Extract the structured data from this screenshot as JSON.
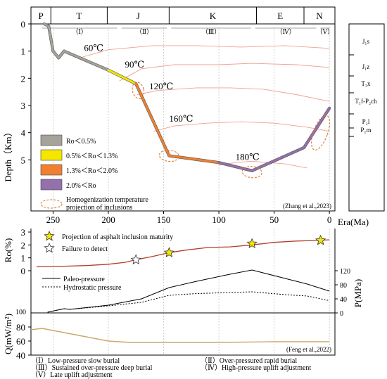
{
  "chart_data": [
    {
      "panel": "burial-history",
      "type": "line",
      "xlabel": "Era(Ma)",
      "ylabel": "Depth（Km）",
      "xlim": [
        270,
        -5
      ],
      "ylim": [
        0,
        6
      ],
      "x_ticks": [
        250,
        200,
        150,
        100,
        50,
        0
      ],
      "y_ticks": [
        0,
        1,
        2,
        3,
        4,
        5
      ],
      "periods": [
        {
          "label": "P",
          "from": 270,
          "to": 252
        },
        {
          "label": "T",
          "from": 252,
          "to": 201
        },
        {
          "label": "J",
          "from": 201,
          "to": 145
        },
        {
          "label": "K",
          "from": 145,
          "to": 66
        },
        {
          "label": "E",
          "from": 66,
          "to": 23
        },
        {
          "label": "N",
          "from": 23,
          "to": -5
        }
      ],
      "stages": [
        {
          "label": "（Ⅰ）",
          "from": 262,
          "to": 190
        },
        {
          "label": "（Ⅱ）",
          "from": 190,
          "to": 145
        },
        {
          "label": "（Ⅲ）",
          "from": 145,
          "to": 69
        },
        {
          "label": "（Ⅳ）",
          "from": 69,
          "to": 10
        },
        {
          "label": "（Ⅴ）",
          "from": 10,
          "to": -2
        }
      ],
      "burial_curve": [
        {
          "x": 258,
          "y": 0.0,
          "ro": "lt05"
        },
        {
          "x": 254,
          "y": 0.08,
          "ro": "lt05"
        },
        {
          "x": 250,
          "y": 1.0,
          "ro": "lt05"
        },
        {
          "x": 245,
          "y": 1.25,
          "ro": "lt05"
        },
        {
          "x": 240,
          "y": 1.0,
          "ro": "lt05"
        },
        {
          "x": 200,
          "y": 1.7,
          "ro": "lt05"
        },
        {
          "x": 175,
          "y": 2.2,
          "ro": "r05_13"
        },
        {
          "x": 145,
          "y": 4.85,
          "ro": "r13_20"
        },
        {
          "x": 100,
          "y": 5.1,
          "ro": "r13_20"
        },
        {
          "x": 70,
          "y": 5.4,
          "ro": "gt20"
        },
        {
          "x": 23,
          "y": 4.55,
          "ro": "gt20"
        },
        {
          "x": 0,
          "y": 3.1,
          "ro": "gt20"
        }
      ],
      "isotherms": [
        {
          "label": "60℃",
          "label_x": 222,
          "label_y": 1.0,
          "points": [
            [
              226,
              1.25
            ],
            [
              200,
              0.95
            ],
            [
              160,
              0.8
            ],
            [
              120,
              0.8
            ],
            [
              80,
              0.85
            ],
            [
              40,
              0.8
            ],
            [
              0,
              0.9
            ]
          ]
        },
        {
          "label": "90℃",
          "label_x": 185,
          "label_y": 1.6,
          "points": [
            [
              190,
              2.1
            ],
            [
              170,
              1.65
            ],
            [
              140,
              1.5
            ],
            [
              100,
              1.5
            ],
            [
              70,
              1.45
            ],
            [
              30,
              1.5
            ],
            [
              0,
              1.6
            ]
          ]
        },
        {
          "label": "120℃",
          "label_x": 163,
          "label_y": 2.4,
          "points": [
            [
              174,
              2.6
            ],
            [
              155,
              2.45
            ],
            [
              120,
              2.35
            ],
            [
              90,
              2.35
            ],
            [
              60,
              2.4
            ],
            [
              30,
              2.6
            ],
            [
              0,
              2.85
            ]
          ]
        },
        {
          "label": "160℃",
          "label_x": 145,
          "label_y": 3.6,
          "points": [
            [
              159,
              3.95
            ],
            [
              140,
              3.75
            ],
            [
              110,
              3.65
            ],
            [
              80,
              3.6
            ],
            [
              50,
              3.65
            ],
            [
              20,
              3.8
            ],
            [
              0,
              3.95
            ]
          ]
        },
        {
          "label": "180℃",
          "label_x": 85,
          "label_y": 5.0,
          "points": [
            [
              100,
              5.2
            ],
            [
              85,
              5.1
            ],
            [
              70,
              5.05
            ],
            [
              40,
              5.15
            ],
            [
              20,
              5.3
            ]
          ]
        }
      ],
      "inclusion_projections": [
        {
          "x": 173,
          "y": 2.45
        },
        {
          "x": 145,
          "y": 4.85
        },
        {
          "x": 70,
          "y": 5.45
        },
        {
          "x": 8,
          "y": 4.0
        }
      ],
      "legend": [
        {
          "key": "lt05",
          "label": "Ro＜0.5%",
          "color": "#a5a299"
        },
        {
          "key": "r05_13",
          "label": "0.5%＜Ro＜1.3%",
          "color": "#f5e600"
        },
        {
          "key": "r13_20",
          "label": "1.3%＜Ro＜2.0%",
          "color": "#f07f30"
        },
        {
          "key": "gt20",
          "label": "2.0%＜Ro",
          "color": "#9470ad"
        }
      ],
      "legend_inclusion_label": [
        "Homogenization temperature",
        "projection of inclusions"
      ],
      "source": "(Zhang et al.,2023)",
      "stratigraphy": [
        {
          "label": "J₁s"
        },
        {
          "label": "J₁z"
        },
        {
          "label": "T₃x"
        },
        {
          "label": "T₁f-P₂ch"
        },
        {
          "label": "P₂l"
        },
        {
          "label": "P₁m"
        }
      ]
    },
    {
      "panel": "ro",
      "type": "line",
      "ylabel": "Ro(%)",
      "ylim": [
        0,
        3
      ],
      "y_ticks": [
        0,
        1,
        2,
        3
      ],
      "series": [
        {
          "values_x": [
            265,
            240,
            220,
            200,
            185,
            175,
            160,
            145,
            130,
            110,
            90,
            70,
            50,
            30,
            10,
            0
          ],
          "values_y": [
            0.3,
            0.35,
            0.4,
            0.5,
            0.65,
            0.85,
            1.1,
            1.4,
            1.6,
            1.8,
            1.85,
            2.0,
            2.2,
            2.3,
            2.35,
            2.4
          ]
        }
      ],
      "asphalt_projections": [
        [
          145,
          1.4
        ],
        [
          70,
          2.1
        ],
        [
          8,
          2.35
        ]
      ],
      "failure_to_detect": [
        [
          175,
          0.85
        ]
      ],
      "legend": [
        "Projection of asphalt inclusion maturity",
        "Failure to detect"
      ],
      "color": "#b0402a"
    },
    {
      "panel": "pressure",
      "type": "line",
      "ylabel": "P(MPa)",
      "ylim": [
        0,
        120
      ],
      "y_ticks": [
        0,
        40,
        80,
        120
      ],
      "series": [
        {
          "name": "Paleo-pressure",
          "x": [
            255,
            240,
            235,
            200,
            170,
            145,
            120,
            90,
            70,
            40,
            20,
            0
          ],
          "y": [
            2,
            12,
            10,
            22,
            40,
            72,
            90,
            110,
            122,
            98,
            82,
            62
          ]
        },
        {
          "name": "Hydrostatic pressure",
          "x": [
            255,
            240,
            235,
            200,
            170,
            145,
            120,
            90,
            70,
            40,
            20,
            0
          ],
          "y": [
            2,
            12,
            10,
            20,
            30,
            50,
            55,
            58,
            60,
            52,
            48,
            35
          ]
        }
      ]
    },
    {
      "panel": "heat-flow",
      "type": "line",
      "ylabel": "Q(mW/m²)",
      "ylim": [
        40,
        100
      ],
      "y_ticks": [
        40,
        60,
        80,
        100
      ],
      "series": [
        {
          "x": [
            270,
            260,
            240,
            220,
            200,
            180,
            150,
            100,
            50,
            0
          ],
          "y": [
            76,
            78,
            72,
            66,
            60,
            58,
            58,
            58,
            59,
            59
          ]
        }
      ],
      "source": "(Feng et al.,2022)",
      "color": "#c9a96e"
    }
  ],
  "stage_notes": [
    "（Ⅰ）Low-pressure slow burial",
    "（Ⅱ）Over-pressured rapid burial",
    "（Ⅲ）Sustained over-pressure deep burial",
    "（Ⅳ）High-pressure uplift adjustment",
    "（Ⅴ）Late uplift adjustment"
  ]
}
